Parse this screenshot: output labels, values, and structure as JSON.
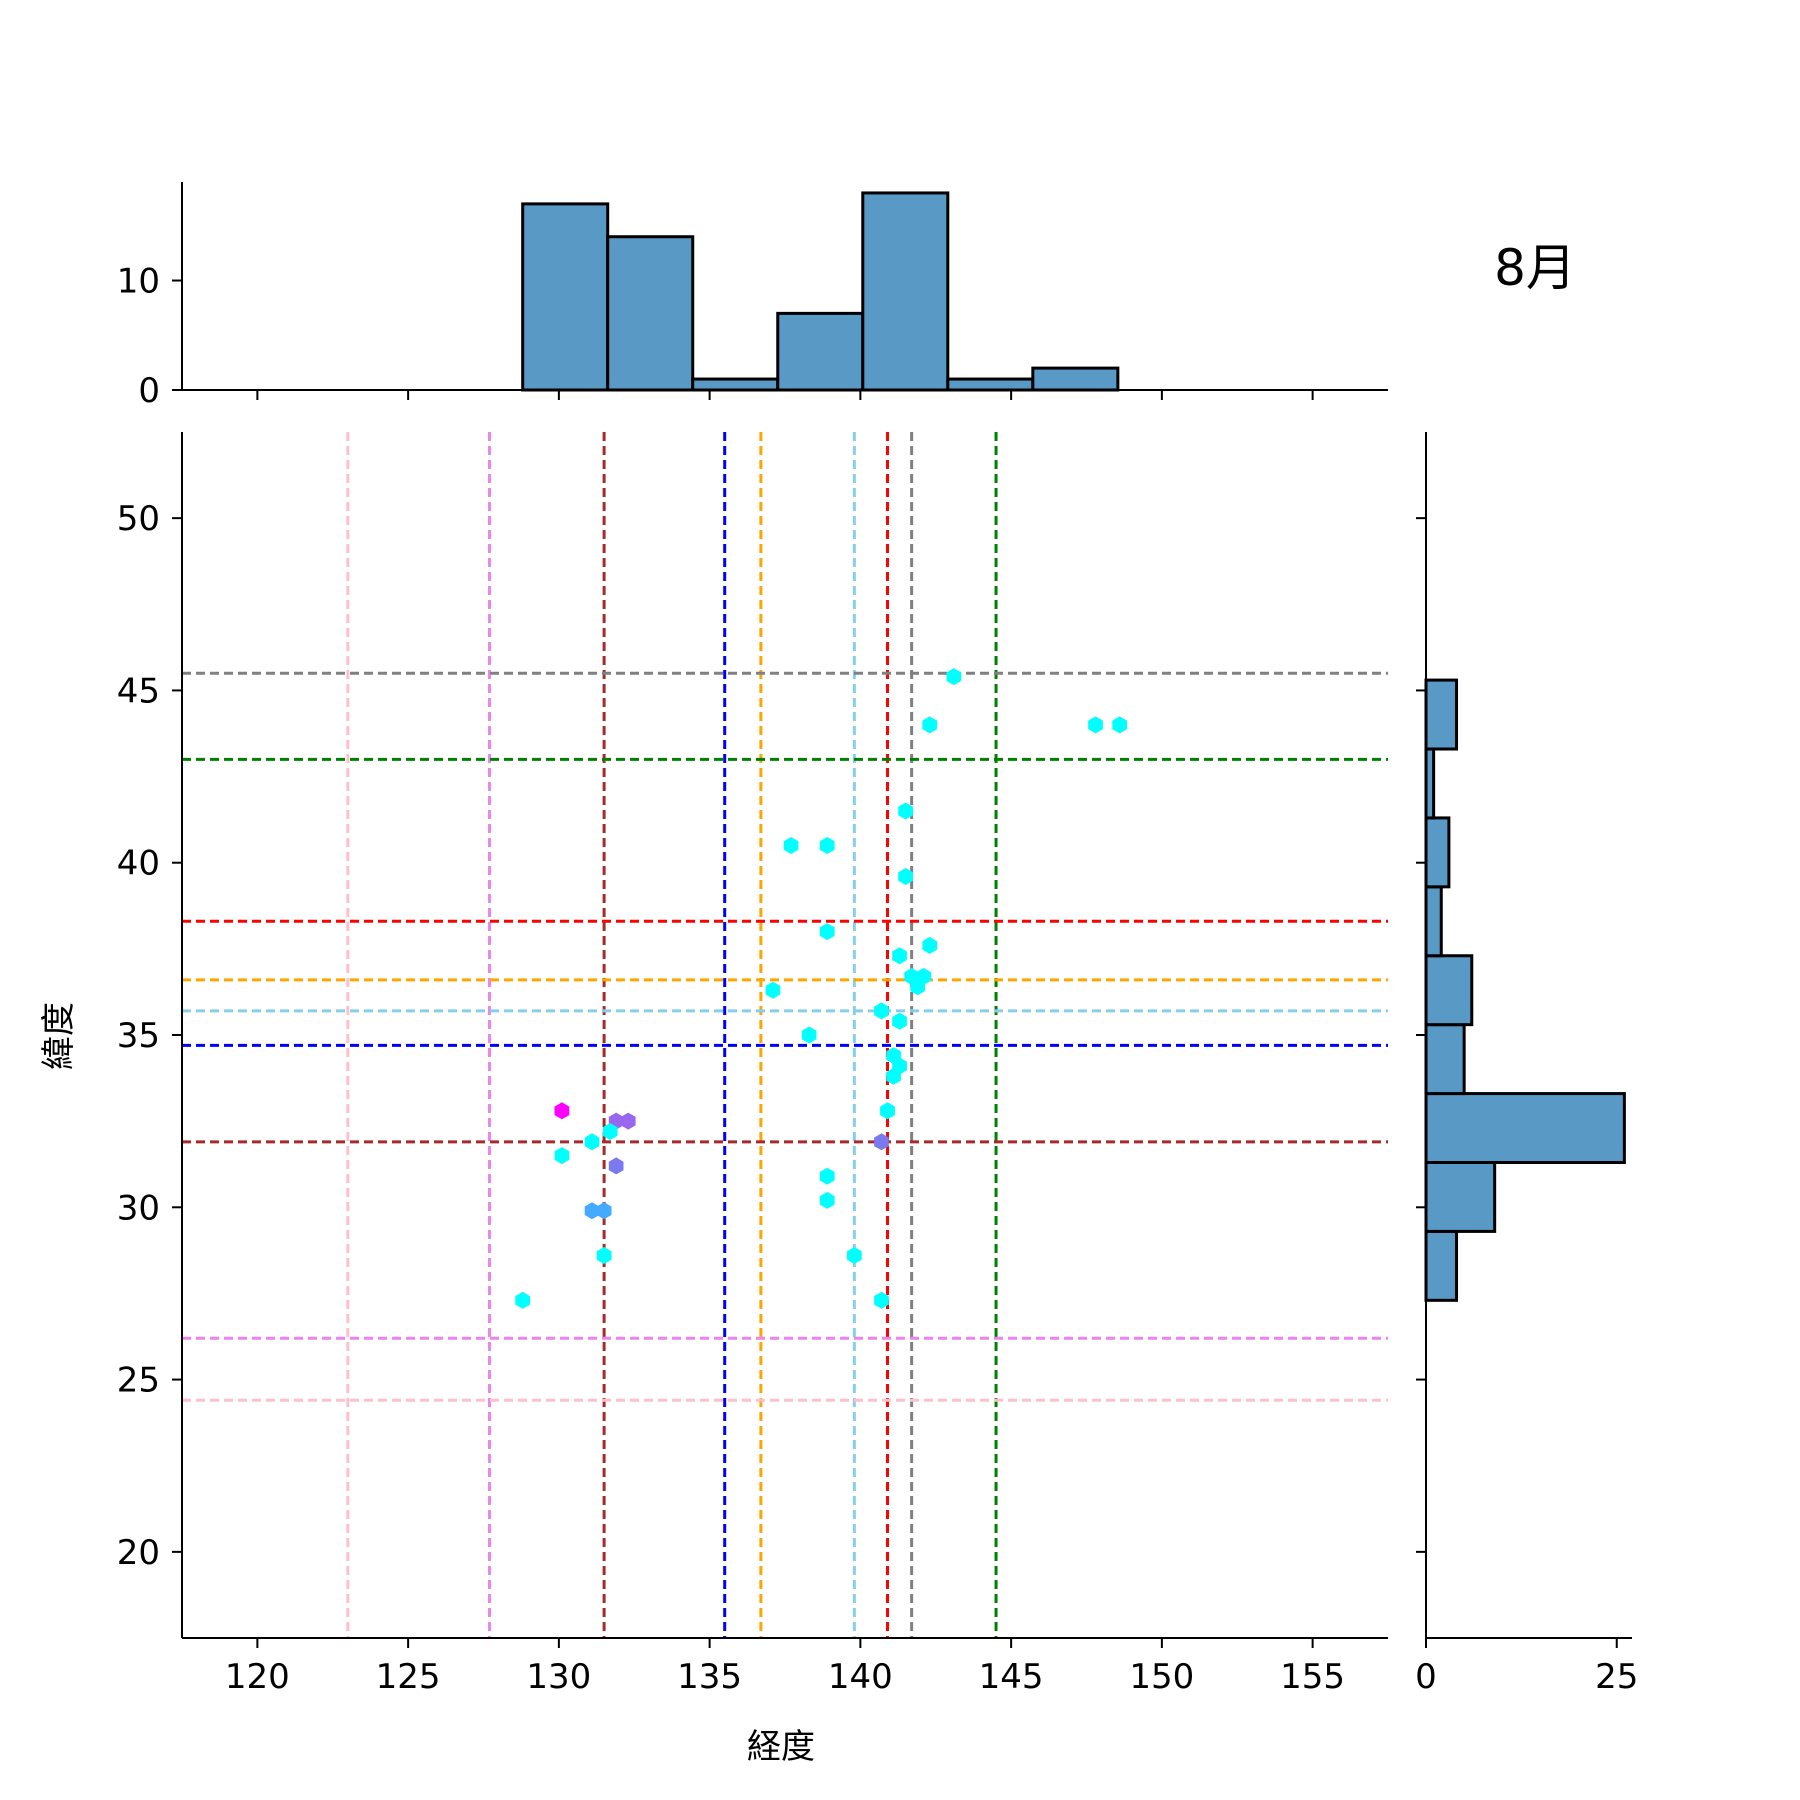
{
  "chart_data": {
    "type": "scatter",
    "title": "8月",
    "xlabel": "経度",
    "ylabel": "緯度",
    "xlim": [
      117.5,
      157.5
    ],
    "ylim": [
      17.5,
      52.5
    ],
    "xticks": [
      120,
      125,
      130,
      135,
      140,
      145,
      150,
      155
    ],
    "yticks": [
      20,
      25,
      30,
      35,
      40,
      45,
      50
    ],
    "grid": false,
    "marker": "hexagon",
    "reference_lines": {
      "vertical": [
        {
          "x": 123.0,
          "color": "#ffc0cb"
        },
        {
          "x": 127.7,
          "color": "#ee82ee"
        },
        {
          "x": 131.5,
          "color": "#a52a2a"
        },
        {
          "x": 135.5,
          "color": "#0000ff"
        },
        {
          "x": 136.7,
          "color": "#ffa500"
        },
        {
          "x": 139.8,
          "color": "#87ceeb"
        },
        {
          "x": 140.9,
          "color": "#ff0000"
        },
        {
          "x": 141.7,
          "color": "#808080"
        },
        {
          "x": 144.5,
          "color": "#008000"
        }
      ],
      "horizontal": [
        {
          "y": 45.5,
          "color": "#808080"
        },
        {
          "y": 43.0,
          "color": "#008000"
        },
        {
          "y": 38.3,
          "color": "#ff0000"
        },
        {
          "y": 36.6,
          "color": "#ffa500"
        },
        {
          "y": 35.7,
          "color": "#87ceeb"
        },
        {
          "y": 34.7,
          "color": "#0000ff"
        },
        {
          "y": 31.9,
          "color": "#a52a2a"
        },
        {
          "y": 26.2,
          "color": "#ee82ee"
        },
        {
          "y": 24.4,
          "color": "#ffc0cb"
        }
      ]
    },
    "points": [
      {
        "x": 143.1,
        "y": 45.4,
        "color": "#00ffff"
      },
      {
        "x": 142.3,
        "y": 44.0,
        "color": "#00ffff"
      },
      {
        "x": 147.8,
        "y": 44.0,
        "color": "#00ffff"
      },
      {
        "x": 148.6,
        "y": 44.0,
        "color": "#00ffff"
      },
      {
        "x": 141.5,
        "y": 41.5,
        "color": "#00ffff"
      },
      {
        "x": 137.7,
        "y": 40.5,
        "color": "#00ffff"
      },
      {
        "x": 138.9,
        "y": 40.5,
        "color": "#00ffff"
      },
      {
        "x": 141.5,
        "y": 39.6,
        "color": "#00ffff"
      },
      {
        "x": 138.9,
        "y": 38.0,
        "color": "#00ffff"
      },
      {
        "x": 142.3,
        "y": 37.6,
        "color": "#00ffff"
      },
      {
        "x": 141.3,
        "y": 37.3,
        "color": "#00ffff"
      },
      {
        "x": 141.7,
        "y": 36.7,
        "color": "#00ffff"
      },
      {
        "x": 142.1,
        "y": 36.7,
        "color": "#00ffff"
      },
      {
        "x": 141.9,
        "y": 36.4,
        "color": "#00ffff"
      },
      {
        "x": 137.1,
        "y": 36.3,
        "color": "#00ffff"
      },
      {
        "x": 140.7,
        "y": 35.7,
        "color": "#00ffff"
      },
      {
        "x": 141.3,
        "y": 35.4,
        "color": "#00ffff"
      },
      {
        "x": 138.3,
        "y": 35.0,
        "color": "#00ffff"
      },
      {
        "x": 141.1,
        "y": 34.4,
        "color": "#00ffff"
      },
      {
        "x": 141.3,
        "y": 34.1,
        "color": "#00ffff"
      },
      {
        "x": 141.1,
        "y": 33.8,
        "color": "#00ffff"
      },
      {
        "x": 140.9,
        "y": 32.8,
        "color": "#00ffff"
      },
      {
        "x": 130.1,
        "y": 32.8,
        "color": "#ff00ff"
      },
      {
        "x": 131.9,
        "y": 32.5,
        "color": "#9966ee"
      },
      {
        "x": 132.3,
        "y": 32.5,
        "color": "#9966ee"
      },
      {
        "x": 131.7,
        "y": 32.2,
        "color": "#00ffff"
      },
      {
        "x": 131.1,
        "y": 31.9,
        "color": "#00ffff"
      },
      {
        "x": 140.7,
        "y": 31.9,
        "color": "#7a7aee"
      },
      {
        "x": 130.1,
        "y": 31.5,
        "color": "#00ffff"
      },
      {
        "x": 131.9,
        "y": 31.2,
        "color": "#7a7aee"
      },
      {
        "x": 138.9,
        "y": 30.9,
        "color": "#00ffff"
      },
      {
        "x": 138.9,
        "y": 30.2,
        "color": "#00ffff"
      },
      {
        "x": 131.1,
        "y": 29.9,
        "color": "#44aaff"
      },
      {
        "x": 131.5,
        "y": 29.9,
        "color": "#44aaff"
      },
      {
        "x": 131.5,
        "y": 28.6,
        "color": "#00ffff"
      },
      {
        "x": 139.8,
        "y": 28.6,
        "color": "#00ffff"
      },
      {
        "x": 128.8,
        "y": 27.3,
        "color": "#00ffff"
      },
      {
        "x": 140.7,
        "y": 27.3,
        "color": "#00ffff"
      }
    ],
    "marginal_x_hist": {
      "bin_edges": [
        128.8,
        131.62,
        134.44,
        137.26,
        140.08,
        142.9,
        145.72,
        148.54
      ],
      "counts": [
        17,
        14,
        1,
        7,
        18,
        1,
        2
      ],
      "yticks": [
        0,
        10
      ],
      "color": "#5899c6"
    },
    "marginal_y_hist": {
      "bin_edges": [
        27.3,
        29.3,
        31.3,
        33.3,
        35.3,
        37.3,
        39.3,
        41.3,
        43.3,
        45.3
      ],
      "counts": [
        4,
        9,
        26,
        5,
        6,
        2,
        3,
        1,
        4
      ],
      "xticks": [
        0,
        25
      ],
      "color": "#5899c6"
    }
  }
}
